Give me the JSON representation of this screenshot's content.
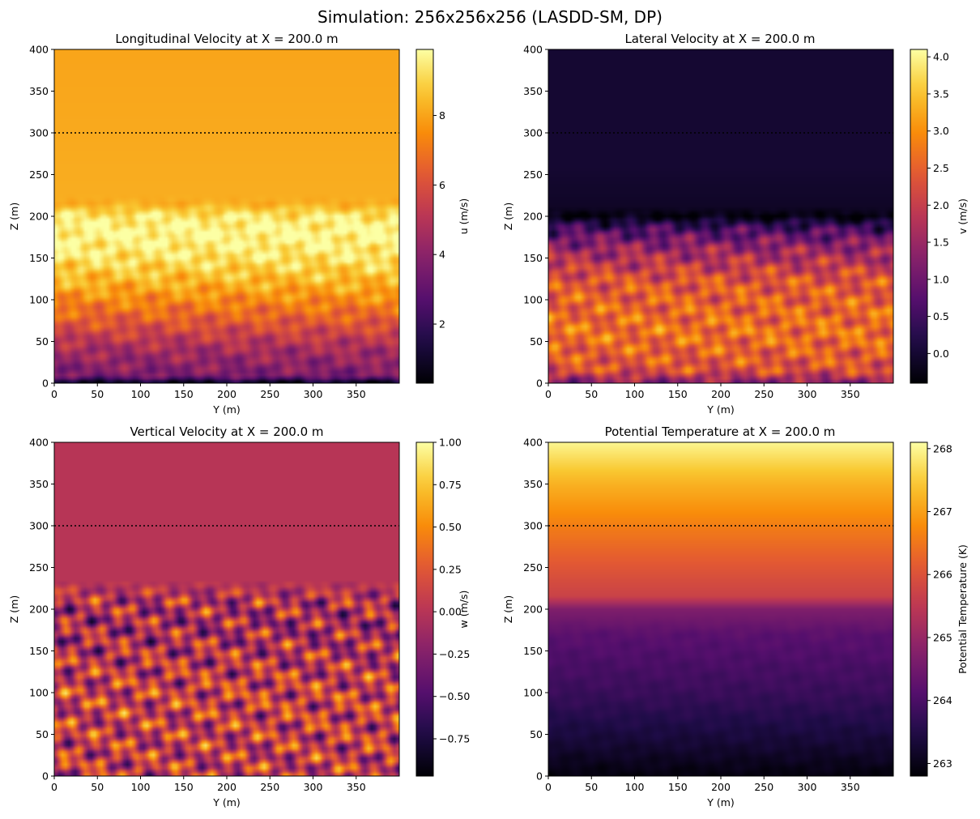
{
  "figure_title": "Simulation: 256x256x256 (LASDD-SM, DP)",
  "chart_data": [
    {
      "type": "heatmap",
      "title": "Longitudinal Velocity at X = 200.0 m",
      "xlabel": "Y (m)",
      "ylabel": "Z (m)",
      "xlim": [
        0,
        400
      ],
      "ylim": [
        0,
        400
      ],
      "x_ticks": [
        0,
        50,
        100,
        150,
        200,
        250,
        300,
        350
      ],
      "y_ticks": [
        0,
        50,
        100,
        150,
        200,
        250,
        300,
        350,
        400
      ],
      "colormap": "inferno",
      "colorbar": {
        "label": "u (m/s)",
        "vmin": 0.3,
        "vmax": 9.9,
        "ticks": [
          "2",
          "4",
          "6",
          "8"
        ]
      },
      "dotted_line_z": 300,
      "vertical_profile": [
        {
          "z": 0,
          "value": 0.3
        },
        {
          "z": 8,
          "value": 3.6
        },
        {
          "z": 40,
          "value": 4.6
        },
        {
          "z": 80,
          "value": 6.6
        },
        {
          "z": 120,
          "value": 8.3
        },
        {
          "z": 150,
          "value": 9.3
        },
        {
          "z": 180,
          "value": 9.8
        },
        {
          "z": 200,
          "value": 9.4
        },
        {
          "z": 215,
          "value": 8.2
        },
        {
          "z": 300,
          "value": 8.1
        },
        {
          "z": 400,
          "value": 8.0
        }
      ],
      "turbulence_top_z": 200,
      "turbulence_amplitude": 1.2
    },
    {
      "type": "heatmap",
      "title": "Lateral Velocity at X = 200.0 m",
      "xlabel": "Y (m)",
      "ylabel": "Z (m)",
      "xlim": [
        0,
        400
      ],
      "ylim": [
        0,
        400
      ],
      "x_ticks": [
        0,
        50,
        100,
        150,
        200,
        250,
        300,
        350
      ],
      "y_ticks": [
        0,
        50,
        100,
        150,
        200,
        250,
        300,
        350,
        400
      ],
      "colormap": "inferno",
      "colorbar": {
        "label": "v (m/s)",
        "vmin": -0.4,
        "vmax": 4.1,
        "ticks": [
          "0.0",
          "0.5",
          "1.0",
          "1.5",
          "2.0",
          "2.5",
          "3.0",
          "3.5",
          "4.0"
        ]
      },
      "dotted_line_z": 300,
      "vertical_profile": [
        {
          "z": 0,
          "value": 1.2
        },
        {
          "z": 15,
          "value": 2.3
        },
        {
          "z": 60,
          "value": 2.7
        },
        {
          "z": 120,
          "value": 2.4
        },
        {
          "z": 160,
          "value": 1.5
        },
        {
          "z": 185,
          "value": 0.6
        },
        {
          "z": 200,
          "value": -0.3
        },
        {
          "z": 212,
          "value": -0.1
        },
        {
          "z": 260,
          "value": 0.0
        },
        {
          "z": 400,
          "value": 0.0
        }
      ],
      "turbulence_top_z": 185,
      "turbulence_amplitude": 0.9
    },
    {
      "type": "heatmap",
      "title": "Vertical Velocity at X = 200.0 m",
      "xlabel": "Y (m)",
      "ylabel": "Z (m)",
      "xlim": [
        0,
        400
      ],
      "ylim": [
        0,
        400
      ],
      "x_ticks": [
        0,
        50,
        100,
        150,
        200,
        250,
        300,
        350
      ],
      "y_ticks": [
        0,
        50,
        100,
        150,
        200,
        250,
        300,
        350,
        400
      ],
      "colormap": "inferno",
      "colorbar": {
        "label": "w (m/s)",
        "vmin": -0.97,
        "vmax": 1.0,
        "ticks": [
          "−0.75",
          "−0.50",
          "−0.25",
          "0.00",
          "0.25",
          "0.50",
          "0.75",
          "1.00"
        ]
      },
      "dotted_line_z": 300,
      "vertical_profile": [
        {
          "z": 0,
          "value": 0.05
        },
        {
          "z": 100,
          "value": 0.1
        },
        {
          "z": 180,
          "value": -0.1
        },
        {
          "z": 220,
          "value": 0.0
        },
        {
          "z": 400,
          "value": 0.0
        }
      ],
      "turbulence_top_z": 210,
      "turbulence_amplitude": 0.75
    },
    {
      "type": "heatmap",
      "title": "Potential Temperature at X = 200.0 m",
      "xlabel": "Y (m)",
      "ylabel": "Z (m)",
      "xlim": [
        0,
        400
      ],
      "ylim": [
        0,
        400
      ],
      "x_ticks": [
        0,
        50,
        100,
        150,
        200,
        250,
        300,
        350
      ],
      "y_ticks": [
        0,
        50,
        100,
        150,
        200,
        250,
        300,
        350,
        400
      ],
      "colormap": "inferno",
      "colorbar": {
        "label": "Potential Temperature (K)",
        "vmin": 262.8,
        "vmax": 268.1,
        "ticks": [
          "263",
          "264",
          "265",
          "266",
          "267",
          "268"
        ]
      },
      "dotted_line_z": 300,
      "vertical_profile": [
        {
          "z": 0,
          "value": 262.9
        },
        {
          "z": 40,
          "value": 263.3
        },
        {
          "z": 100,
          "value": 263.8
        },
        {
          "z": 170,
          "value": 264.2
        },
        {
          "z": 200,
          "value": 264.7
        },
        {
          "z": 215,
          "value": 265.7
        },
        {
          "z": 300,
          "value": 266.6
        },
        {
          "z": 350,
          "value": 267.2
        },
        {
          "z": 400,
          "value": 268.0
        }
      ],
      "turbulence_top_z": 170,
      "turbulence_amplitude": 0.12
    }
  ]
}
